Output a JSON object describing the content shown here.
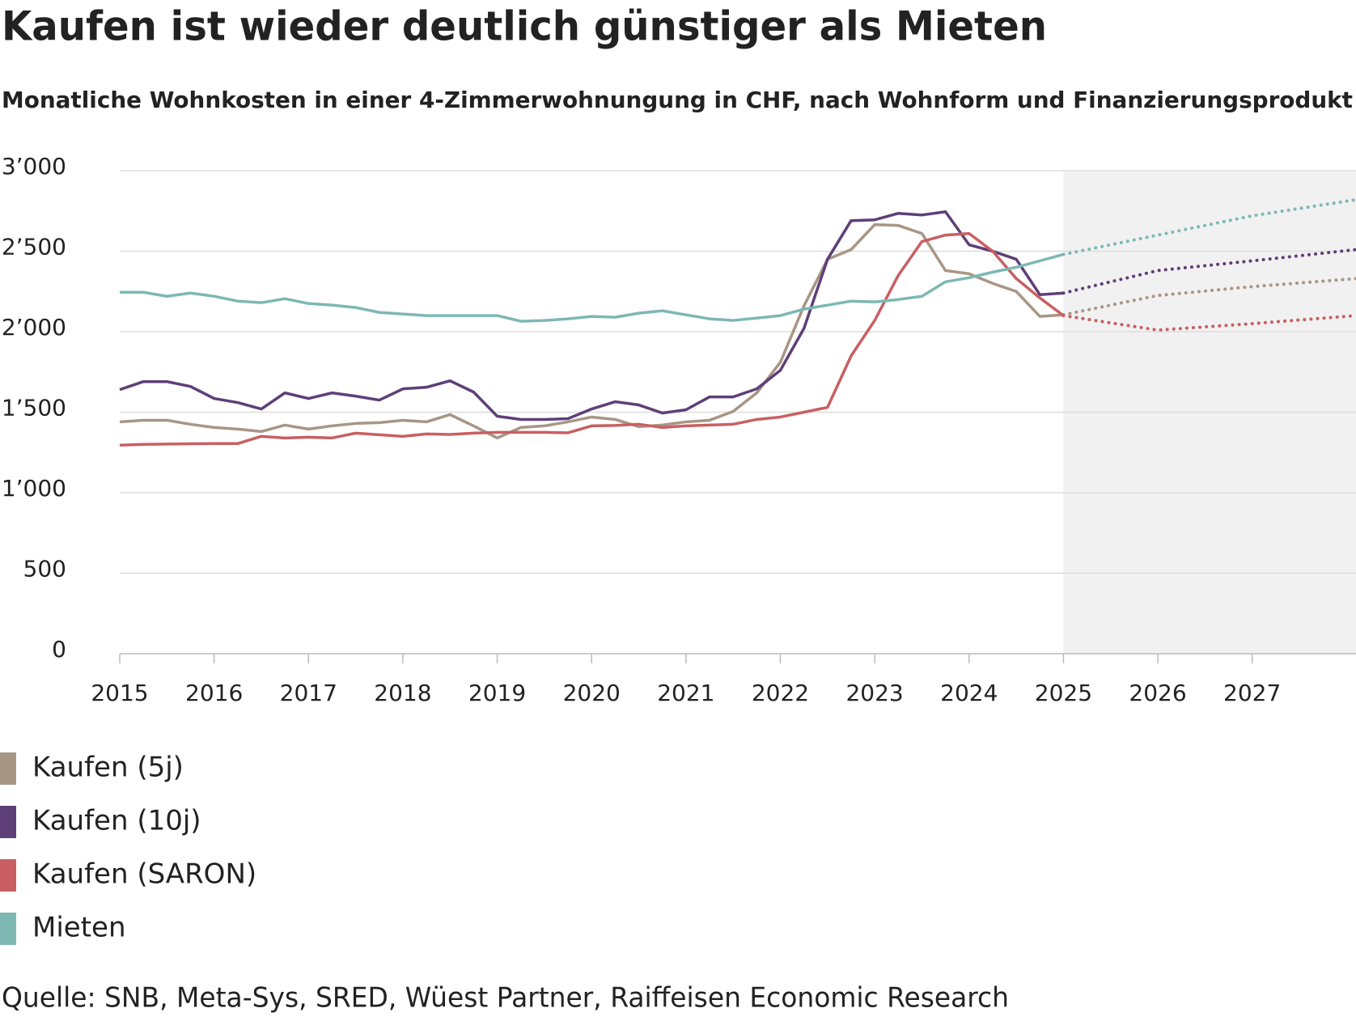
{
  "chart_data": {
    "type": "line",
    "title": "Kaufen ist wieder deutlich günstiger als Mieten",
    "subtitle": "Monatliche Wohnkosten in einer 4-Zimmerwohnungung in CHF, nach Wohnform und Finanzierungsprodukt",
    "source": "Quelle: SNB, Meta-Sys, SRED, Wüest Partner, Raiffeisen Economic Research",
    "x": [
      2015,
      2015.25,
      2015.5,
      2015.75,
      2016,
      2016.25,
      2016.5,
      2016.75,
      2017,
      2017.25,
      2017.5,
      2017.75,
      2018,
      2018.25,
      2018.5,
      2018.75,
      2019,
      2019.25,
      2019.5,
      2019.75,
      2020,
      2020.25,
      2020.5,
      2020.75,
      2021,
      2021.25,
      2021.5,
      2021.75,
      2022,
      2022.25,
      2022.5,
      2022.75,
      2023,
      2023.25,
      2023.5,
      2023.75,
      2024,
      2024.25,
      2024.5,
      2024.75,
      2025
    ],
    "forecast_x": [
      2025,
      2026,
      2027,
      2028.1
    ],
    "series": [
      {
        "name": "Kaufen (5j)",
        "color": "#a89685",
        "values": [
          1440,
          1450,
          1450,
          1425,
          1405,
          1395,
          1380,
          1420,
          1395,
          1415,
          1430,
          1435,
          1450,
          1440,
          1485,
          1415,
          1340,
          1405,
          1415,
          1440,
          1470,
          1455,
          1410,
          1420,
          1440,
          1450,
          1505,
          1620,
          1810,
          2160,
          2450,
          2510,
          2665,
          2660,
          2610,
          2380,
          2360,
          2300,
          2250,
          2095,
          2105
        ],
        "forecast_values": [
          2105,
          2225,
          2280,
          2330
        ]
      },
      {
        "name": "Kaufen (10j)",
        "color": "#5e3f78",
        "values": [
          1640,
          1690,
          1690,
          1660,
          1585,
          1560,
          1520,
          1620,
          1585,
          1620,
          1600,
          1575,
          1645,
          1655,
          1695,
          1625,
          1475,
          1455,
          1455,
          1460,
          1520,
          1565,
          1545,
          1495,
          1515,
          1595,
          1595,
          1645,
          1760,
          2020,
          2450,
          2690,
          2695,
          2735,
          2725,
          2745,
          2540,
          2500,
          2450,
          2230,
          2240
        ],
        "forecast_values": [
          2240,
          2380,
          2440,
          2510
        ]
      },
      {
        "name": "Kaufen (SARON)",
        "color": "#c95f62",
        "values": [
          1295,
          1300,
          1302,
          1304,
          1305,
          1305,
          1350,
          1340,
          1345,
          1340,
          1370,
          1360,
          1350,
          1365,
          1362,
          1370,
          1375,
          1375,
          1375,
          1372,
          1415,
          1418,
          1425,
          1405,
          1415,
          1420,
          1425,
          1455,
          1470,
          1500,
          1530,
          1850,
          2070,
          2350,
          2560,
          2600,
          2610,
          2500,
          2330,
          2210,
          2100
        ],
        "forecast_values": [
          2100,
          2010,
          2050,
          2100
        ]
      },
      {
        "name": "Mieten",
        "color": "#7db8b3",
        "values": [
          2245,
          2245,
          2220,
          2240,
          2220,
          2190,
          2180,
          2205,
          2175,
          2165,
          2150,
          2120,
          2110,
          2100,
          2100,
          2100,
          2100,
          2065,
          2070,
          2080,
          2095,
          2090,
          2115,
          2130,
          2105,
          2080,
          2070,
          2085,
          2100,
          2140,
          2165,
          2190,
          2185,
          2200,
          2220,
          2310,
          2335,
          2370,
          2400,
          2440,
          2480
        ],
        "forecast_values": [
          2480,
          2600,
          2720,
          2820
        ]
      }
    ],
    "xlim": [
      2015,
      2028.1
    ],
    "xticks": [
      2015,
      2016,
      2017,
      2018,
      2019,
      2020,
      2021,
      2022,
      2023,
      2024,
      2025,
      2026,
      2027
    ],
    "ylim": [
      0,
      3000
    ],
    "yticks": [
      0,
      500,
      {
        "value": 1000,
        "label": "1’000"
      },
      {
        "value": 1500,
        "label": "1’500"
      },
      {
        "value": 2000,
        "label": "2’000"
      },
      {
        "value": 2500,
        "label": "2’500"
      },
      {
        "value": 3000,
        "label": "3’000"
      }
    ],
    "grid": true,
    "forecast_shade": "#f1f1f1"
  }
}
